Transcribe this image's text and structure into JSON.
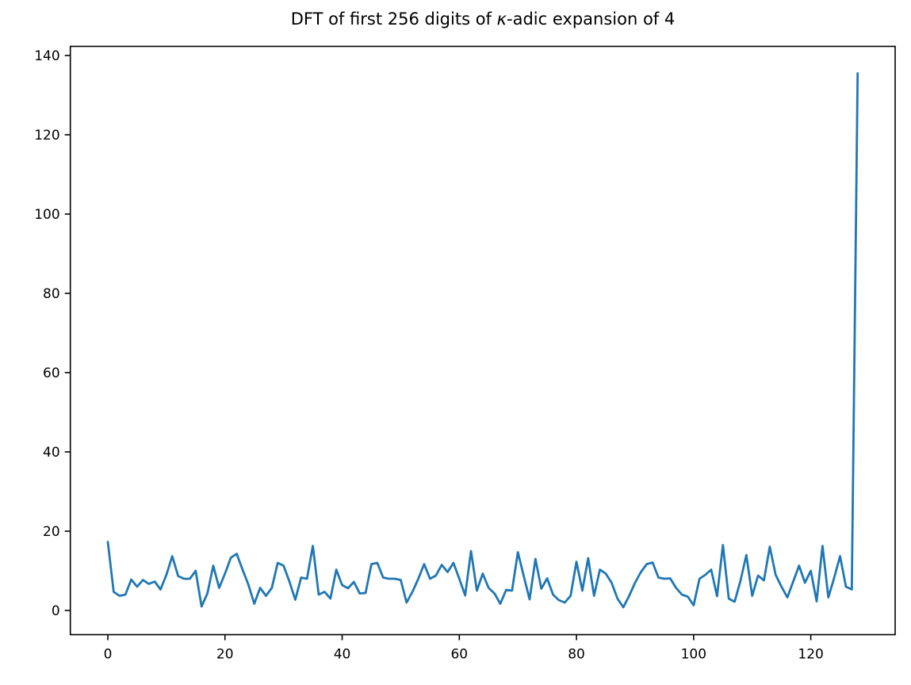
{
  "chart_data": {
    "type": "line",
    "title": "DFT of first 256 digits of κ-adic expansion of 4",
    "title_prefix": "DFT of first 256 digits of ",
    "title_kappa": "κ",
    "title_suffix": "-adic expansion of 4",
    "xlabel": "",
    "ylabel": "",
    "x_start": 0,
    "x_step": 1,
    "values": [
      17.3,
      4.7,
      3.7,
      4.0,
      7.8,
      6.0,
      7.7,
      6.7,
      7.3,
      5.3,
      9.0,
      13.7,
      8.7,
      8.0,
      8.0,
      10.0,
      1.0,
      4.3,
      11.3,
      5.7,
      9.3,
      13.3,
      14.3,
      10.3,
      6.5,
      1.7,
      5.7,
      3.7,
      5.7,
      12.0,
      11.3,
      7.3,
      2.7,
      8.3,
      8.0,
      16.3,
      4.0,
      4.7,
      3.0,
      10.3,
      6.4,
      5.6,
      7.2,
      4.3,
      4.4,
      11.7,
      12.0,
      8.3,
      8.0,
      8.0,
      7.7,
      2.0,
      4.7,
      8.0,
      11.7,
      8.0,
      8.8,
      11.5,
      9.7,
      12.0,
      8.0,
      3.8,
      15.0,
      5.0,
      9.3,
      5.7,
      4.3,
      1.7,
      5.2,
      5.0,
      14.7,
      8.7,
      2.8,
      13.0,
      5.5,
      8.1,
      4.0,
      2.6,
      2.0,
      3.7,
      12.3,
      5.0,
      13.2,
      3.7,
      10.3,
      9.3,
      7.0,
      3.0,
      0.8,
      3.7,
      7.0,
      9.7,
      11.7,
      12.1,
      8.3,
      8.0,
      8.1,
      5.7,
      4.0,
      3.5,
      1.3,
      8.0,
      9.0,
      10.3,
      3.6,
      16.5,
      3.0,
      2.2,
      7.5,
      14.0,
      3.7,
      8.8,
      7.6,
      16.1,
      9.0,
      6.0,
      3.3,
      7.3,
      11.3,
      7.0,
      10.0,
      2.3,
      16.3,
      3.3,
      8.3,
      13.7,
      6.0,
      5.3,
      135.5
    ],
    "xticks": [
      0,
      20,
      40,
      60,
      80,
      100,
      120
    ],
    "yticks": [
      0,
      20,
      40,
      60,
      80,
      100,
      120,
      140
    ],
    "xlim": [
      -6.4,
      134.4
    ],
    "ylim": [
      -6.1,
      142.3
    ],
    "grid": false,
    "legend": "none",
    "line_color": "#1f77b4",
    "axis_color": "#000000",
    "background": "#ffffff"
  }
}
